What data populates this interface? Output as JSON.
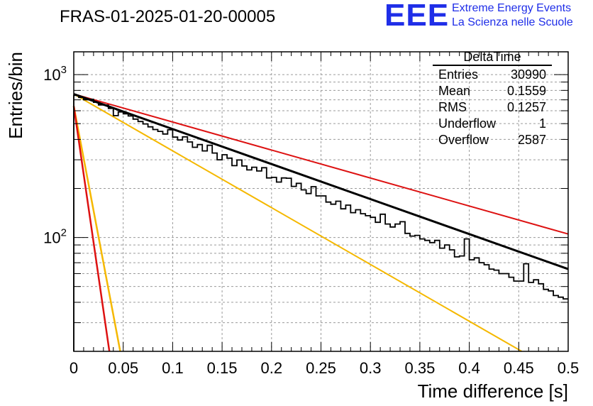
{
  "header": {
    "title": "FRAS-01-2025-01-20-00005",
    "logo_text": "EEE",
    "logo_line1": "Extreme Energy Events",
    "logo_line2": "La Scienza nelle Scuole"
  },
  "stats": {
    "title": "DeltaTime",
    "rows": [
      {
        "label": "Entries",
        "value": "30990"
      },
      {
        "label": "Mean",
        "value": "0.1559"
      },
      {
        "label": "RMS",
        "value": "0.1257"
      },
      {
        "label": "Underflow",
        "value": "1"
      },
      {
        "label": "Overflow",
        "value": "2587"
      }
    ]
  },
  "colors": {
    "histogram": "#000000",
    "fit": "#000000",
    "red": "#dd1111",
    "orange": "#f5b800",
    "grid": "#9a9a9a",
    "logo": "#1f2ee8"
  },
  "chart_data": {
    "type": "line",
    "xlabel": "Time difference [s]",
    "ylabel": "Entries/bin",
    "xlim": [
      0,
      0.5
    ],
    "ylim": [
      20,
      1380
    ],
    "yscale": "log",
    "grid": true,
    "x_ticks": [
      "0",
      "0.05",
      "0.1",
      "0.15",
      "0.2",
      "0.25",
      "0.3",
      "0.35",
      "0.4",
      "0.45",
      "0.5"
    ],
    "y_ticks": [
      {
        "value": 100,
        "label": "10",
        "exp": "2"
      },
      {
        "value": 1000,
        "label": "10",
        "exp": "3"
      }
    ],
    "histogram": {
      "bin_width": 0.005,
      "values": [
        745,
        725,
        701,
        705,
        676,
        651,
        650,
        620,
        560,
        590,
        574,
        557,
        533,
        515,
        498,
        478,
        460,
        448,
        432,
        458,
        413,
        397,
        415,
        386,
        358,
        372,
        340,
        368,
        330,
        300,
        322,
        307,
        276,
        299,
        275,
        260,
        270,
        256,
        268,
        232,
        234,
        219,
        232,
        231,
        206,
        215,
        196,
        186,
        205,
        180,
        180,
        165,
        160,
        167,
        150,
        158,
        142,
        148,
        140,
        136,
        133,
        124,
        139,
        121,
        116,
        121,
        125,
        106,
        102,
        103,
        98,
        96,
        93,
        96,
        86,
        90,
        84,
        76,
        77,
        98,
        73,
        75,
        70,
        68,
        64,
        63,
        60,
        60,
        57,
        54,
        54,
        69,
        53,
        55,
        52,
        48,
        47,
        44,
        43,
        42
      ]
    },
    "series": [
      {
        "name": "",
        "style": "fit",
        "x": [
          0,
          0.5
        ],
        "y": [
          760,
          64
        ]
      },
      {
        "name": "",
        "style": "red-slow",
        "x": [
          0,
          0.5
        ],
        "y": [
          760,
          105
        ]
      },
      {
        "name": "",
        "style": "orange-slow",
        "x": [
          0,
          0.453
        ],
        "y": [
          760,
          20
        ]
      },
      {
        "name": "",
        "style": "red-fast",
        "x": [
          0,
          0.036
        ],
        "y": [
          640,
          20
        ]
      },
      {
        "name": "",
        "style": "orange-fast",
        "x": [
          0,
          0.047
        ],
        "y": [
          640,
          20
        ]
      }
    ]
  }
}
